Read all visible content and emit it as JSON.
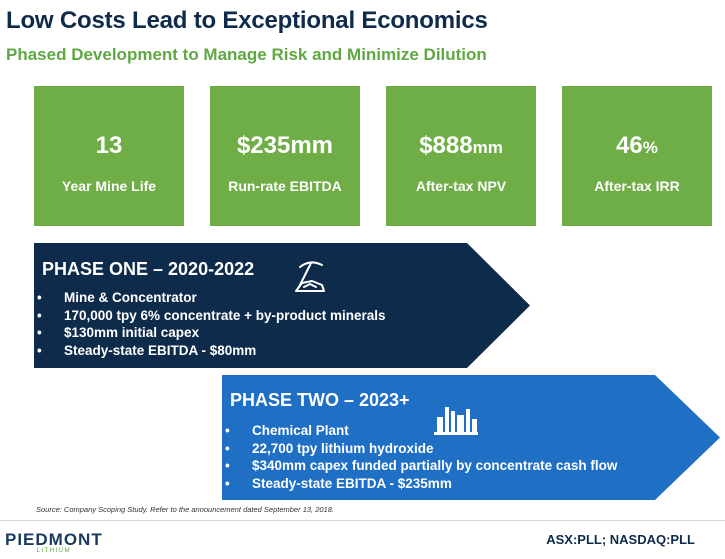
{
  "header": {
    "title": "Low Costs Lead to Exceptional Economics",
    "subtitle": "Phased Development to Manage Risk and Minimize Dilution"
  },
  "metrics": [
    {
      "value": "13",
      "unit": "",
      "label": "Year Mine Life"
    },
    {
      "value": "$235mm",
      "unit": "",
      "label": "Run-rate EBITDA"
    },
    {
      "value": "$888",
      "unit": "mm",
      "label": "After-tax NPV"
    },
    {
      "value": "46",
      "unit": "%",
      "label": "After-tax IRR"
    }
  ],
  "phase_one": {
    "title": "PHASE ONE – 2020-2022",
    "icon": "pickaxe-ore-icon",
    "bullets": [
      "Mine & Concentrator",
      "170,000 tpy 6% concentrate + by-product minerals",
      "$130mm initial capex",
      "Steady-state EBITDA - $80mm"
    ]
  },
  "phase_two": {
    "title": "PHASE TWO – 2023+",
    "icon": "chemical-plant-icon",
    "bullets": [
      "Chemical Plant",
      "22,700 tpy lithium hydroxide",
      "$340mm capex funded partially by concentrate cash flow",
      "Steady-state EBITDA - $235mm"
    ]
  },
  "source": "Source: Company Scoping Study.  Refer  to the announcement dated September 13, 2018.",
  "footer": {
    "logo_name": "PIEDMONT",
    "logo_sub": "LITHIUM",
    "ticker": "ASX:PLL; NASDAQ:PLL"
  },
  "colors": {
    "navy": "#0f2b4c",
    "green": "#6fad46",
    "blue": "#1f6fc5"
  }
}
